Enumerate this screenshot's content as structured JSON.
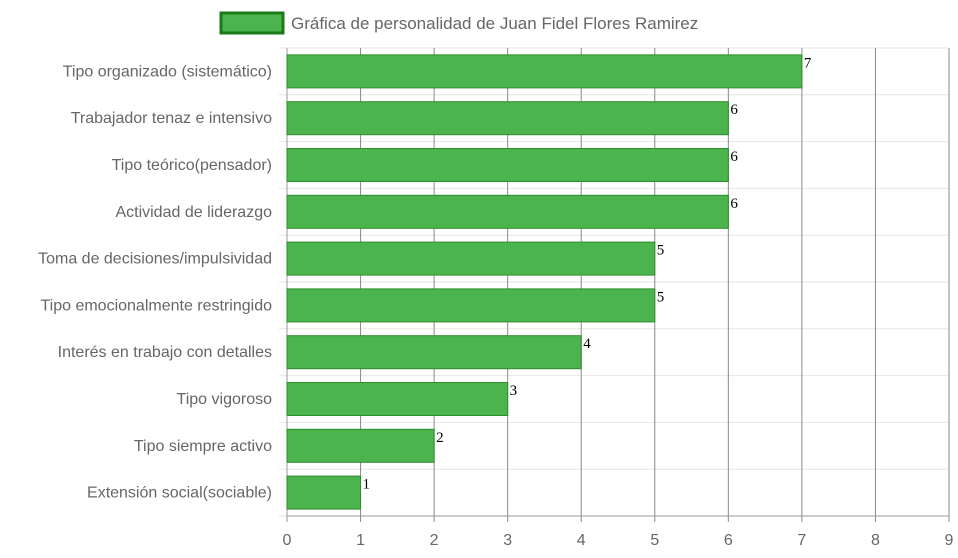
{
  "chart_data": {
    "type": "bar",
    "orientation": "horizontal",
    "categories": [
      "Tipo organizado (sistemático)",
      "Trabajador tenaz e intensivo",
      "Tipo teórico(pensador)",
      "Actividad de liderazgo",
      "Toma de decisiones/impulsividad",
      "Tipo emocionalmente restringido",
      "Interés en trabajo con detalles",
      "Tipo vigoroso",
      "Tipo siempre activo",
      "Extensión social(sociable)"
    ],
    "series": [
      {
        "name": "Gráfica de personalidad de Juan Fidel Flores Ramirez",
        "values": [
          7,
          6,
          6,
          6,
          5,
          5,
          4,
          3,
          2,
          1
        ],
        "color": "#4cb44c",
        "border_color": "#2e8b2e"
      }
    ],
    "xlim": [
      0,
      9
    ],
    "x_ticks": [
      "0",
      "1",
      "2",
      "3",
      "4",
      "5",
      "6",
      "7",
      "8",
      "9"
    ],
    "grid": true,
    "legend_position": "top",
    "legend_swatch_color": "#4cb44c",
    "legend_border_color": "#1a7a1a"
  }
}
